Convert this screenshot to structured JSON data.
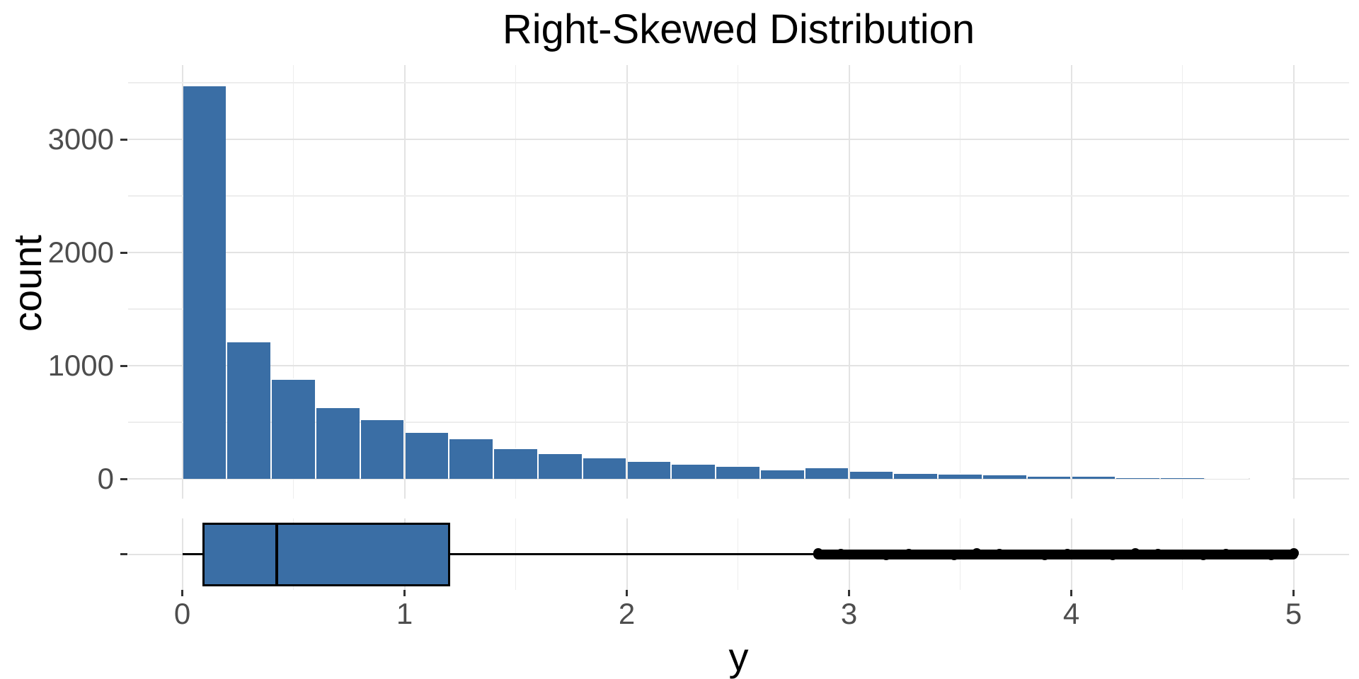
{
  "title": "Right-Skewed Distribution",
  "colors": {
    "bar_fill": "#3a6ea5",
    "bar_border": "#ffffff",
    "box_fill": "#3a6ea5",
    "box_border": "#000000",
    "whisker": "#000000",
    "outlier": "#000000",
    "grid_major": "#e3e3e3",
    "grid_minor": "#ededed",
    "tick_mark": "#333333",
    "tick_label": "#4d4d4d",
    "text": "#000000",
    "background": "#ffffff"
  },
  "chart_data": {
    "type": "histogram+boxplot",
    "title": "Right-Skewed Distribution",
    "xlabel": "y",
    "ylabel": "count",
    "legend": "none",
    "grid": "on",
    "x_axis": {
      "lim": [
        -0.25,
        5.25
      ],
      "major_ticks": [
        0,
        1,
        2,
        3,
        4,
        5
      ],
      "tick_labels": [
        "0",
        "1",
        "2",
        "3",
        "4",
        "5"
      ],
      "minor_gridlines": [
        0.5,
        1.5,
        2.5,
        3.5,
        4.5
      ]
    },
    "y_axis": {
      "lim": [
        -174,
        3654
      ],
      "major_ticks": [
        0,
        1000,
        2000,
        3000
      ],
      "tick_labels": [
        "0",
        "1000",
        "2000",
        "3000"
      ],
      "minor_gridlines": [
        500,
        1500,
        2500,
        3500
      ]
    },
    "histogram": {
      "bin_start": 0,
      "bin_width": 0.2,
      "counts": [
        3480,
        1220,
        885,
        635,
        530,
        418,
        365,
        278,
        230,
        192,
        165,
        135,
        120,
        90,
        108,
        72,
        56,
        50,
        45,
        30,
        32,
        18,
        17,
        10,
        6
      ]
    },
    "boxplot": {
      "category_count": 1,
      "whisker_min": 0.0,
      "q1": 0.09,
      "median": 0.425,
      "q3": 1.205,
      "whisker_max": 2.85,
      "outliers_from": 2.86,
      "outliers_to": 5.0,
      "outliers_dense": true
    }
  }
}
